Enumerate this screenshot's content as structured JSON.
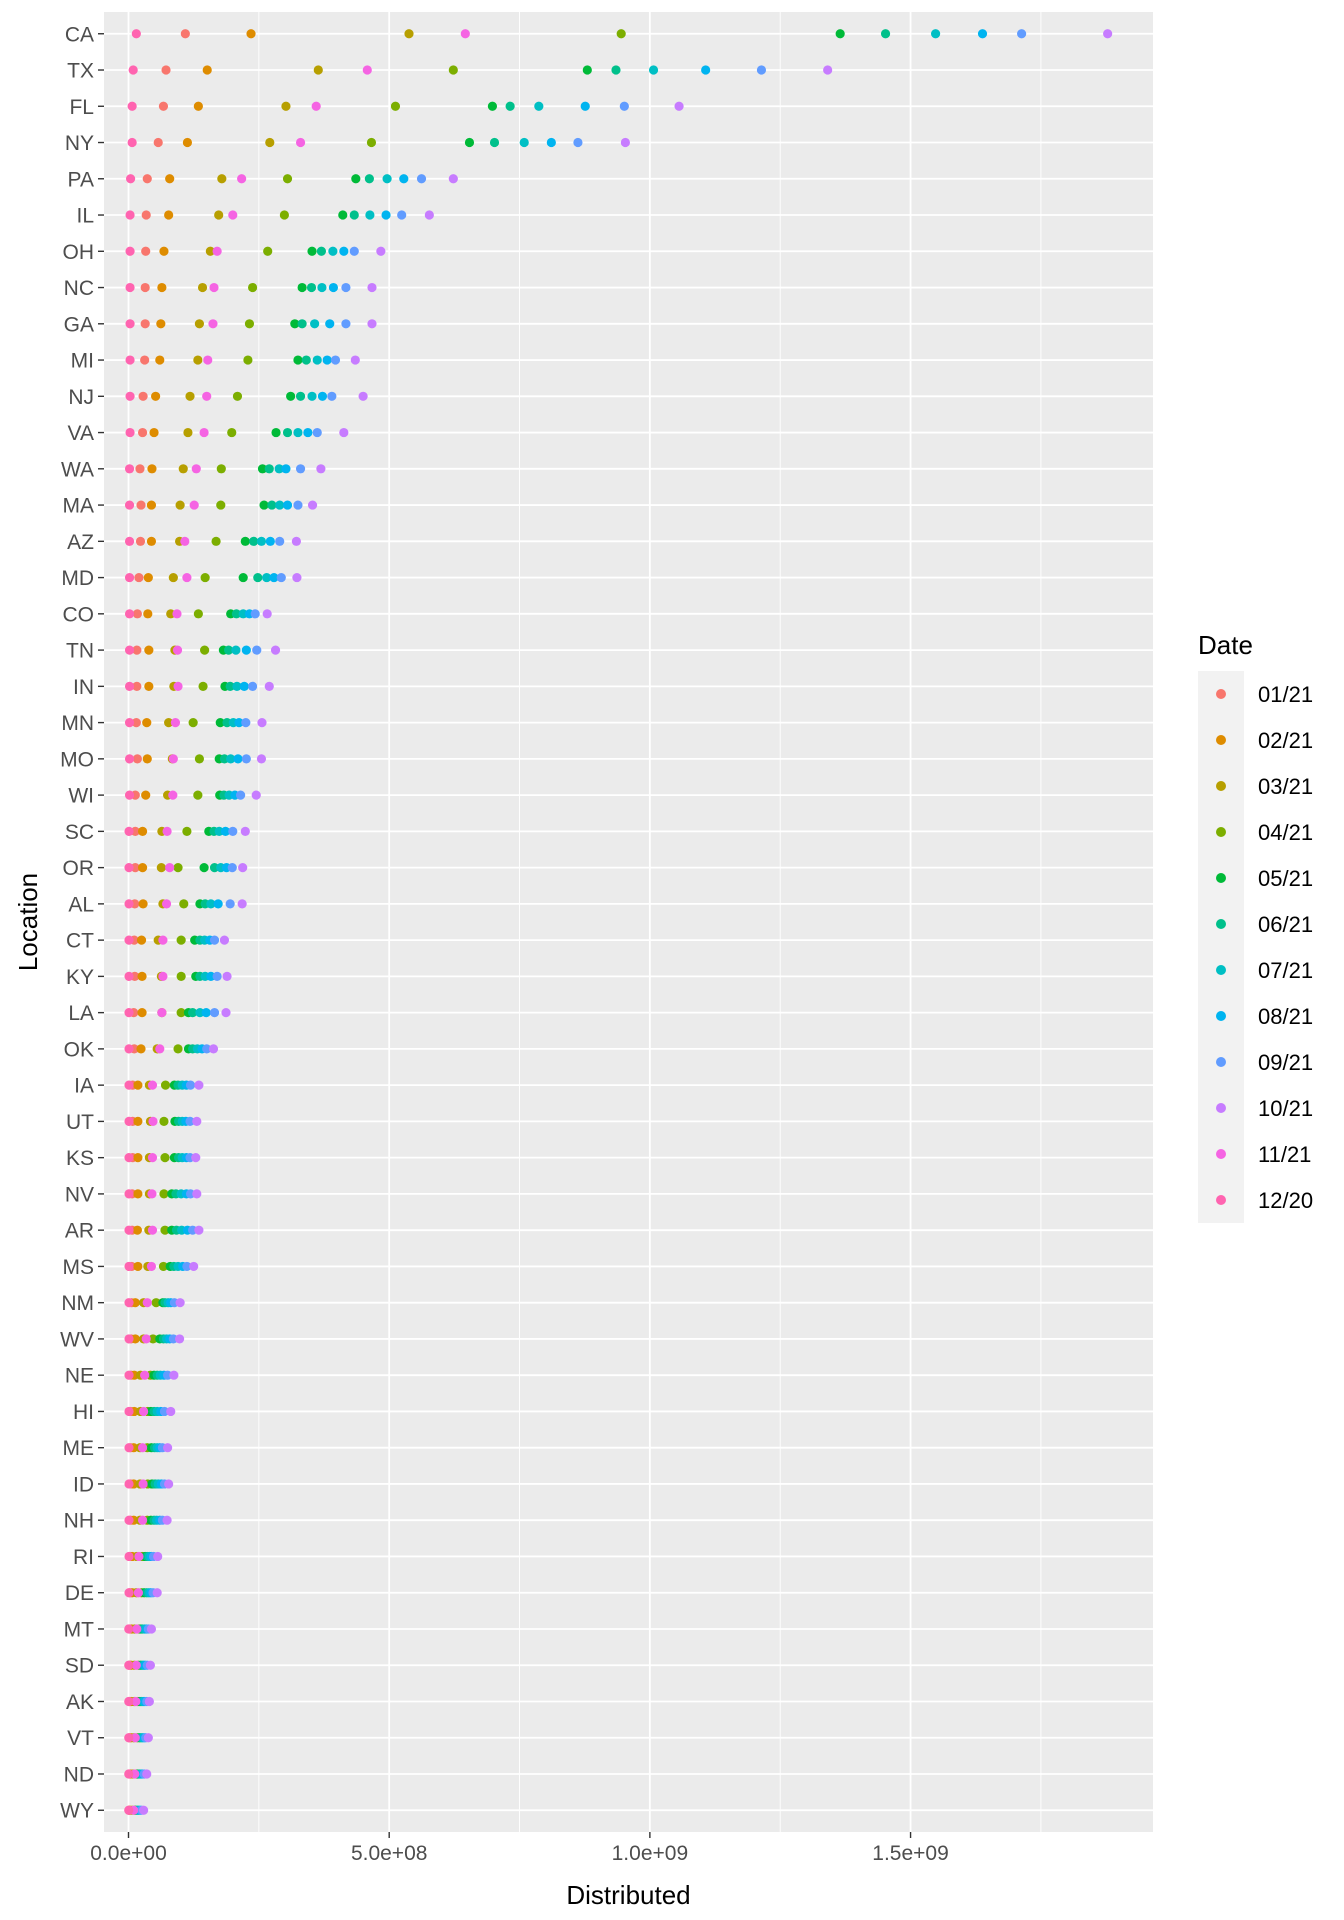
{
  "chart_data": {
    "type": "scatter",
    "xlabel": "Distributed",
    "ylabel": "Location",
    "x_ticks": [
      {
        "value": 0,
        "label": "0.0e+00"
      },
      {
        "value": 500000000,
        "label": "5.0e+08"
      },
      {
        "value": 1000000000,
        "label": "1.0e+09"
      },
      {
        "value": 1500000000,
        "label": "1.5e+09"
      }
    ],
    "xlim": [
      -47000000,
      1965000000
    ],
    "legend": {
      "title": "Date",
      "position": "right",
      "entries": [
        {
          "label": "01/21",
          "color": "#F8766D"
        },
        {
          "label": "02/21",
          "color": "#DE8C00"
        },
        {
          "label": "03/21",
          "color": "#B79F00"
        },
        {
          "label": "04/21",
          "color": "#7CAE00"
        },
        {
          "label": "05/21",
          "color": "#00BA38"
        },
        {
          "label": "06/21",
          "color": "#00C08B"
        },
        {
          "label": "07/21",
          "color": "#00BFC4"
        },
        {
          "label": "08/21",
          "color": "#00B4F0"
        },
        {
          "label": "09/21",
          "color": "#619CFF"
        },
        {
          "label": "10/21",
          "color": "#C77CFF"
        },
        {
          "label": "11/21",
          "color": "#F564E3"
        },
        {
          "label": "12/20",
          "color": "#FF64B0"
        }
      ]
    },
    "states": [
      "CA",
      "TX",
      "FL",
      "NY",
      "PA",
      "IL",
      "OH",
      "NC",
      "GA",
      "MI",
      "NJ",
      "VA",
      "WA",
      "MA",
      "AZ",
      "MD",
      "CO",
      "TN",
      "IN",
      "MN",
      "MO",
      "WI",
      "SC",
      "OR",
      "AL",
      "CT",
      "KY",
      "LA",
      "OK",
      "IA",
      "UT",
      "KS",
      "NV",
      "AR",
      "MS",
      "NM",
      "WV",
      "NE",
      "HI",
      "ME",
      "ID",
      "NH",
      "RI",
      "DE",
      "MT",
      "SD",
      "AK",
      "VT",
      "ND",
      "WY"
    ],
    "points_by_state": {
      "CA": [
        109000000,
        235000000,
        538000000,
        945000000,
        1365000000,
        1452000000,
        1548000000,
        1638000000,
        1713000000,
        1878000000,
        646000000,
        15000000
      ],
      "TX": [
        72000000,
        151000000,
        364000000,
        623000000,
        880000000,
        935000000,
        1007000000,
        1107000000,
        1214000000,
        1341000000,
        458000000,
        9000000
      ],
      "FL": [
        67000000,
        134000000,
        302000000,
        512000000,
        698000000,
        732000000,
        787000000,
        876000000,
        951000000,
        1056000000,
        360000000,
        7000000
      ],
      "NY": [
        57000000,
        113000000,
        271000000,
        466000000,
        654000000,
        702000000,
        759000000,
        811000000,
        862000000,
        953000000,
        330000000,
        7000000
      ],
      "PA": [
        36000000,
        79000000,
        179000000,
        305000000,
        436000000,
        462000000,
        496000000,
        528000000,
        562000000,
        623000000,
        217000000,
        4000000
      ],
      "IL": [
        34000000,
        77000000,
        173000000,
        299000000,
        411000000,
        433000000,
        463000000,
        494000000,
        524000000,
        577000000,
        200000000,
        3000000
      ],
      "OH": [
        33000000,
        68000000,
        157000000,
        267000000,
        352000000,
        370000000,
        392000000,
        413000000,
        433000000,
        484000000,
        170000000,
        3000000
      ],
      "NC": [
        32000000,
        64000000,
        142000000,
        238000000,
        333000000,
        351000000,
        371000000,
        393000000,
        417000000,
        467000000,
        164000000,
        3000000
      ],
      "GA": [
        32000000,
        62000000,
        136000000,
        232000000,
        319000000,
        333000000,
        357000000,
        386000000,
        417000000,
        467000000,
        162000000,
        3000000
      ],
      "MI": [
        31000000,
        60000000,
        133000000,
        229000000,
        325000000,
        341000000,
        362000000,
        381000000,
        397000000,
        435000000,
        152000000,
        3000000
      ],
      "NJ": [
        28000000,
        52000000,
        118000000,
        209000000,
        311000000,
        330000000,
        352000000,
        372000000,
        390000000,
        450000000,
        150000000,
        3000000
      ],
      "VA": [
        27000000,
        49000000,
        114000000,
        198000000,
        283000000,
        305000000,
        325000000,
        344000000,
        362000000,
        413000000,
        145000000,
        3000000
      ],
      "WA": [
        22000000,
        45000000,
        105000000,
        178000000,
        257000000,
        270000000,
        289000000,
        302000000,
        330000000,
        369000000,
        130000000,
        2000000
      ],
      "MA": [
        24000000,
        44000000,
        99000000,
        177000000,
        260000000,
        275000000,
        290000000,
        305000000,
        325000000,
        353000000,
        126000000,
        2000000
      ],
      "AZ": [
        23000000,
        44000000,
        98000000,
        168000000,
        224000000,
        240000000,
        255000000,
        272000000,
        290000000,
        322000000,
        108000000,
        2000000
      ],
      "MD": [
        20000000,
        38000000,
        86000000,
        147000000,
        220000000,
        248000000,
        265000000,
        279000000,
        293000000,
        323000000,
        112000000,
        2000000
      ],
      "CO": [
        17000000,
        37000000,
        81000000,
        134000000,
        196000000,
        207000000,
        220000000,
        232000000,
        243000000,
        266000000,
        93000000,
        2000000
      ],
      "TN": [
        16000000,
        39000000,
        89000000,
        146000000,
        182000000,
        192000000,
        206000000,
        226000000,
        246000000,
        282000000,
        94000000,
        2000000
      ],
      "IN": [
        16000000,
        39000000,
        87000000,
        143000000,
        185000000,
        195000000,
        208000000,
        222000000,
        238000000,
        270000000,
        95000000,
        2000000
      ],
      "MN": [
        15000000,
        35000000,
        77000000,
        124000000,
        176000000,
        189000000,
        201000000,
        212000000,
        225000000,
        256000000,
        90000000,
        2000000
      ],
      "MO": [
        17000000,
        36000000,
        84000000,
        136000000,
        174000000,
        184000000,
        196000000,
        210000000,
        226000000,
        255000000,
        86000000,
        2000000
      ],
      "WI": [
        13000000,
        33000000,
        75000000,
        133000000,
        175000000,
        183000000,
        193000000,
        204000000,
        215000000,
        245000000,
        85000000,
        2000000
      ],
      "SC": [
        13000000,
        27000000,
        64000000,
        112000000,
        154000000,
        164000000,
        174000000,
        186000000,
        200000000,
        224000000,
        74000000,
        1000000
      ],
      "OR": [
        13000000,
        27000000,
        63000000,
        95000000,
        145000000,
        165000000,
        177000000,
        188000000,
        199000000,
        219000000,
        79000000,
        1000000
      ],
      "AL": [
        12000000,
        28000000,
        66000000,
        106000000,
        137000000,
        147000000,
        158000000,
        172000000,
        195000000,
        218000000,
        73000000,
        1000000
      ],
      "CT": [
        11000000,
        25000000,
        57000000,
        101000000,
        127000000,
        137000000,
        146000000,
        156000000,
        165000000,
        184000000,
        66000000,
        1000000
      ],
      "KY": [
        12000000,
        26000000,
        63000000,
        101000000,
        129000000,
        137000000,
        147000000,
        158000000,
        170000000,
        189000000,
        66000000,
        1000000
      ],
      "LA": [
        10000000,
        26000000,
        64000000,
        101000000,
        115000000,
        123000000,
        137000000,
        149000000,
        165000000,
        187000000,
        64000000,
        1000000
      ],
      "OK": [
        11000000,
        24000000,
        55000000,
        95000000,
        115000000,
        123000000,
        132000000,
        141000000,
        150000000,
        163000000,
        60000000,
        1000000
      ],
      "IA": [
        8000000,
        18000000,
        40000000,
        71000000,
        88000000,
        95000000,
        103000000,
        111000000,
        119000000,
        135000000,
        46000000,
        1000000
      ],
      "UT": [
        8000000,
        18000000,
        42000000,
        68000000,
        89000000,
        96000000,
        103000000,
        110000000,
        118000000,
        131000000,
        47000000,
        1000000
      ],
      "KS": [
        8000000,
        18000000,
        40000000,
        70000000,
        88000000,
        96000000,
        103000000,
        111000000,
        118000000,
        129000000,
        46000000,
        1000000
      ],
      "NV": [
        7000000,
        18000000,
        40000000,
        68000000,
        83000000,
        91000000,
        101000000,
        111000000,
        119000000,
        131000000,
        45000000,
        1000000
      ],
      "AR": [
        7000000,
        17000000,
        39000000,
        70000000,
        83000000,
        92000000,
        102000000,
        113000000,
        123000000,
        135000000,
        46000000,
        1000000
      ],
      "MS": [
        6000000,
        18000000,
        37000000,
        67000000,
        80000000,
        87000000,
        95000000,
        104000000,
        112000000,
        125000000,
        44000000,
        1000000
      ],
      "NM": [
        6000000,
        13000000,
        29000000,
        53000000,
        66000000,
        70000000,
        76000000,
        81000000,
        88000000,
        99000000,
        36000000,
        1000000
      ],
      "WV": [
        5000000,
        13000000,
        29000000,
        47000000,
        60000000,
        67000000,
        73000000,
        79000000,
        86000000,
        98000000,
        34000000,
        1000000
      ],
      "NE": [
        5000000,
        11000000,
        23000000,
        42000000,
        49000000,
        55000000,
        61000000,
        68000000,
        75000000,
        87000000,
        31000000,
        1000000
      ],
      "HI": [
        4000000,
        11000000,
        23000000,
        37000000,
        43000000,
        49000000,
        55000000,
        62000000,
        69000000,
        81000000,
        29000000,
        1000000
      ],
      "ME": [
        4000000,
        10000000,
        22000000,
        36000000,
        44000000,
        50000000,
        55000000,
        60000000,
        65000000,
        75000000,
        27000000,
        1000000
      ],
      "ID": [
        4000000,
        10000000,
        22000000,
        37000000,
        45000000,
        51000000,
        57000000,
        63000000,
        69000000,
        77000000,
        28000000,
        1000000
      ],
      "NH": [
        4000000,
        10000000,
        22000000,
        36000000,
        43000000,
        49000000,
        54000000,
        60000000,
        65000000,
        74000000,
        27000000,
        1000000
      ],
      "RI": [
        3000000,
        7000000,
        16000000,
        26000000,
        32000000,
        36000000,
        40000000,
        44000000,
        48000000,
        56000000,
        20000000,
        1000000
      ],
      "DE": [
        3000000,
        7000000,
        15000000,
        25000000,
        30000000,
        35000000,
        39000000,
        43000000,
        47000000,
        55000000,
        19000000,
        1000000
      ],
      "MT": [
        2000000,
        6000000,
        12000000,
        20000000,
        24000000,
        27000000,
        31000000,
        35000000,
        38000000,
        44000000,
        16000000,
        500000
      ],
      "SD": [
        2000000,
        5000000,
        11000000,
        19000000,
        23000000,
        26000000,
        29000000,
        32000000,
        36000000,
        42000000,
        15000000,
        500000
      ],
      "AK": [
        2000000,
        5000000,
        11000000,
        18000000,
        22000000,
        25000000,
        28000000,
        31000000,
        35000000,
        40000000,
        14000000,
        500000
      ],
      "VT": [
        2000000,
        5000000,
        10000000,
        17000000,
        21000000,
        24000000,
        27000000,
        30000000,
        33000000,
        38000000,
        13000000,
        500000
      ],
      "ND": [
        2000000,
        4000000,
        9000000,
        15000000,
        18000000,
        21000000,
        24000000,
        27000000,
        30000000,
        35000000,
        12000000,
        500000
      ],
      "WY": [
        1000000,
        3000000,
        7000000,
        12000000,
        14000000,
        17000000,
        19000000,
        22000000,
        25000000,
        29000000,
        10000000,
        500000
      ]
    }
  },
  "theme": {
    "panel_background": "#EBEBEB",
    "grid_major": "#FFFFFF",
    "tick_text": "#4D4D4D",
    "tick_mark": "#333333"
  }
}
